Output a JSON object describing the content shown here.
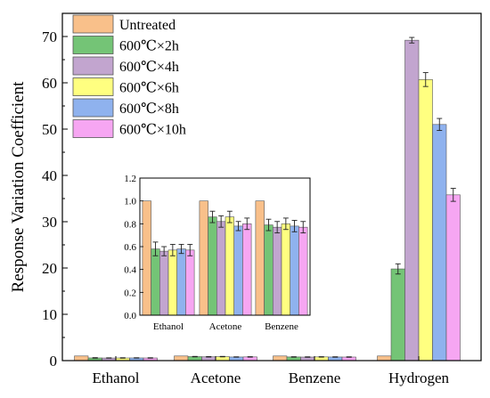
{
  "chart_data": [
    {
      "type": "bar",
      "ylabel": "Response Variation Coefficient",
      "xlabel": "",
      "categories": [
        "Ethanol",
        "Acetone",
        "Benzene",
        "Hydrogen"
      ],
      "ylim": [
        0,
        75
      ],
      "yticks": [
        "0",
        "10",
        "20",
        "30",
        "40",
        "50",
        "60",
        "70"
      ],
      "legend_position": "top-left",
      "series": [
        {
          "name": "Untreated",
          "color": "#f9c08a",
          "values": [
            1.0,
            1.0,
            1.0,
            1.0
          ],
          "errors": [
            0,
            0,
            0,
            0
          ]
        },
        {
          "name": "600℃×2h",
          "color": "#74c476",
          "values": [
            0.58,
            0.86,
            0.79,
            19.8
          ],
          "errors": [
            0.06,
            0.05,
            0.05,
            1.1
          ]
        },
        {
          "name": "600℃×4h",
          "color": "#c2a5cf",
          "values": [
            0.56,
            0.82,
            0.77,
            69.2
          ],
          "errors": [
            0.04,
            0.05,
            0.05,
            0.6
          ]
        },
        {
          "name": "600℃×6h",
          "color": "#ffff80",
          "values": [
            0.57,
            0.86,
            0.8,
            60.7
          ],
          "errors": [
            0.05,
            0.05,
            0.05,
            1.5
          ]
        },
        {
          "name": "600℃×8h",
          "color": "#8fb2ee",
          "values": [
            0.58,
            0.78,
            0.78,
            51.0
          ],
          "errors": [
            0.04,
            0.04,
            0.05,
            1.3
          ]
        },
        {
          "name": "600℃×10h",
          "color": "#f6a6f2",
          "values": [
            0.57,
            0.8,
            0.77,
            35.8
          ],
          "errors": [
            0.05,
            0.05,
            0.05,
            1.4
          ]
        }
      ]
    },
    {
      "type": "bar",
      "inset": true,
      "categories": [
        "Ethanol",
        "Acetone",
        "Benzene"
      ],
      "ylim": [
        0,
        1.2
      ],
      "yticks": [
        "0.0",
        "0.2",
        "0.4",
        "0.6",
        "0.8",
        "1.0",
        "1.2"
      ],
      "series_from_main": true
    }
  ]
}
